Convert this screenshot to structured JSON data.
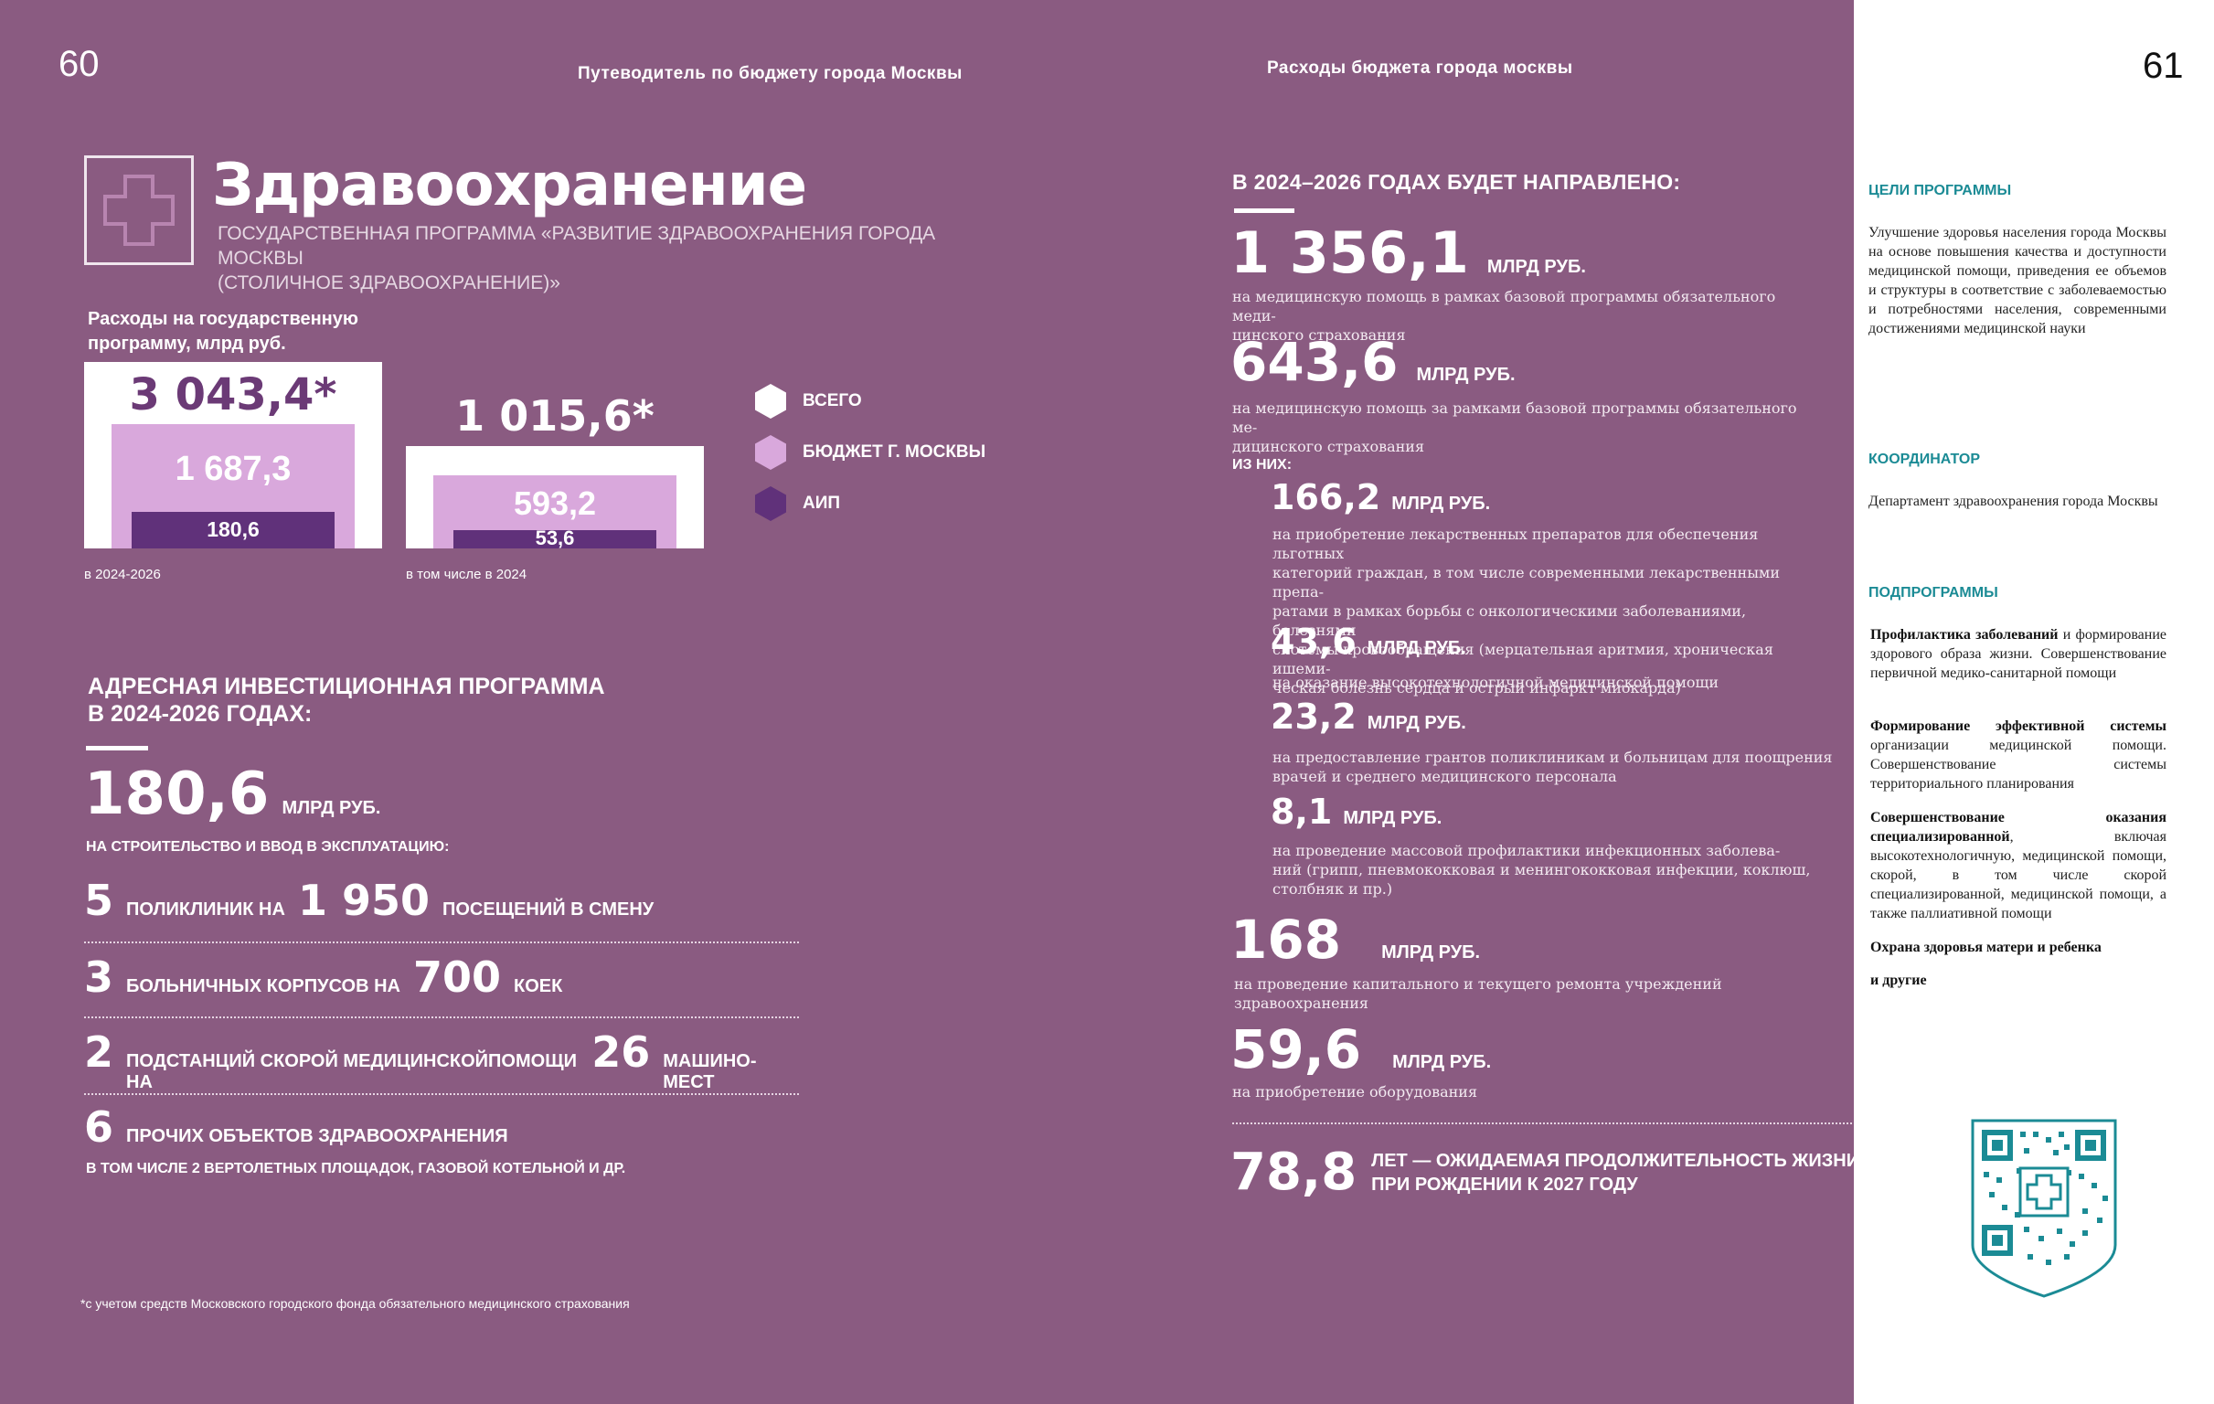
{
  "header": {
    "page_left": "60",
    "page_right": "61",
    "running_left": "Путеводитель по бюджету города Москвы",
    "running_right": "Расходы бюджета города москвы"
  },
  "title": {
    "heading": "Здравоохранение",
    "subtitle_line1": "ГОСУДАРСТВЕННАЯ ПРОГРАММА «РАЗВИТИЕ ЗДРАВООХРАНЕНИЯ ГОРОДА МОСКВЫ",
    "subtitle_line2": "(СТОЛИЧНОЕ ЗДРАВООХРАНЕНИЕ)»"
  },
  "chart_data": {
    "type": "bar",
    "title": "Расходы на государственную программу, млрд руб.",
    "legend": [
      "ВСЕГО",
      "БЮДЖЕТ Г. МОСКВЫ",
      "АИП"
    ],
    "groups": [
      {
        "caption": "в 2024-2026",
        "total_label": "3 043,4*",
        "budget_label": "1 687,3",
        "aip_label": "180,6",
        "total": 3043.4,
        "budget": 1687.3,
        "aip": 180.6
      },
      {
        "caption": "в том числе в 2024",
        "total_label": "1 015,6*",
        "budget_label": "593,2",
        "aip_label": "53,6",
        "total": 1015.6,
        "budget": 593.2,
        "aip": 53.6
      }
    ],
    "colors": {
      "total": "#ffffff",
      "budget": "#d9a8dc",
      "aip": "#60317a"
    }
  },
  "aip": {
    "heading_line1": "АДРЕСНАЯ ИНВЕСТИЦИОННАЯ ПРОГРАММА",
    "heading_line2": "В 2024-2026 ГОДАХ:",
    "amount": "180,6",
    "amount_unit": "МЛРД РУБ.",
    "purpose": "НА СТРОИТЕЛЬСТВО И ВВОД В ЭКСПЛУАТАЦИЮ:",
    "facilities": [
      {
        "num": "5",
        "text": "ПОЛИКЛИНИК НА",
        "num2": "1 950",
        "text2": "ПОСЕЩЕНИЙ В СМЕНУ"
      },
      {
        "num": "3",
        "text": "БОЛЬНИЧНЫХ КОРПУСОВ НА",
        "num2": "700",
        "text2": "КОЕК"
      },
      {
        "num": "2",
        "text": "ПОДСТАНЦИЙ СКОРОЙ МЕДИЦИНСКОЙПОМОЩИ НА",
        "num2": "26",
        "text2": "МАШИНО-МЕСТ"
      },
      {
        "num": "6",
        "text": "ПРОЧИХ ОБЪЕКТОВ ЗДРАВООХРАНЕНИЯ",
        "num2": "",
        "text2": ""
      }
    ],
    "facilities_note": "В ТОМ ЧИСЛЕ 2 ВЕРТОЛЕТНЫХ ПЛОЩАДОК, ГАЗОВОЙ КОТЕЛЬНОЙ И ДР."
  },
  "footnote": "*с учетом средств Московского городского фонда обязательного медицинского страхования",
  "directed": {
    "heading": "В 2024–2026 ГОДАХ БУДЕТ НАПРАВЛЕНО:",
    "unit": "МЛРД РУБ.",
    "main_items": [
      {
        "value": "1 356,1",
        "desc1": "на медицинскую помощь в рамках базовой программы  обязательного меди-",
        "desc2": "цинского страхования"
      },
      {
        "value": "643,6",
        "desc1": "на медицинскую помощь за рамками базовой программы  обязательного ме-",
        "desc2": "дицинского страхования"
      }
    ],
    "of_them": "ИЗ НИХ:",
    "sub_items": [
      {
        "value": "166,2",
        "lines": [
          "на приобретение лекарственных препаратов для обеспечения льготных",
          "категорий граждан, в том числе современными лекарственными препа-",
          "ратами в рамках борьбы с онкологическими заболеваниями, болезнями",
          "системы кровообращения (мерцательная аритмия, хроническая ишеми-",
          "ческая болезнь сердца и острый инфаркт миокарда)"
        ]
      },
      {
        "value": "43,6",
        "lines": [
          "на оказание высокотехнологичной медицинской помощи"
        ]
      },
      {
        "value": "23,2",
        "lines": [
          "на предоставление грантов поликлиникам и больницам для поощрения",
          "врачей и среднего медицинского персонала"
        ]
      },
      {
        "value": "8,1",
        "lines": [
          "на проведение массовой профилактики инфекционных заболева-",
          "ний (грипп, пневмококковая и менингококковая инфекции, коклюш,",
          "столбняк и пр.)"
        ]
      }
    ],
    "extra_items": [
      {
        "value": "168",
        "desc1": "на  проведение  капитального  и  текущего  ремонта  учреждений",
        "desc2": "здравоохранения"
      },
      {
        "value": "59,6",
        "desc1": "на приобретение оборудования",
        "desc2": ""
      }
    ],
    "life": {
      "value": "78,8",
      "line1": "ЛЕТ — ОЖИДАЕМАЯ ПРОДОЛЖИТЕЛЬНОСТЬ ЖИЗНИ",
      "line2": "ПРИ РОЖДЕНИИ К 2027 ГОДУ"
    }
  },
  "sidebar": {
    "goals_head": "ЦЕЛИ ПРОГРАММЫ",
    "goals_text": "Улучшение здоровья населения города Москвы на основе повышения качества и доступности медицинской помощи, приведения ее объемов и структуры в соответствие с заболеваемостью и потребностями населения, современными достижениями медицинской науки",
    "coord_head": "КООРДИНАТОР",
    "coord_text": "Департамент здравоохранения города Москвы",
    "sub_head": "ПОДПРОГРАММЫ",
    "subprograms": [
      {
        "bold": "Профилактика заболеваний",
        "rest": " и формирование здорового образа жизни. Совершенствование первичной медико-санитарной помощи"
      },
      {
        "bold": "Формирование эффективной системы",
        "rest": " организации медицинской помощи. Совершенствование системы территориального планирования"
      },
      {
        "bold": "Совершенствование оказания специализированной",
        "rest": ", включая высокотехнологичную, медицинской помощи, скорой, в том числе скорой специализированной, медицинской помощи, а также паллиативной помощи"
      },
      {
        "bold": "Охрана здоровья матери и ребенка",
        "rest": ""
      },
      {
        "bold": "и другие",
        "rest": ""
      }
    ],
    "colors": {
      "accent": "#1b8b95"
    }
  }
}
